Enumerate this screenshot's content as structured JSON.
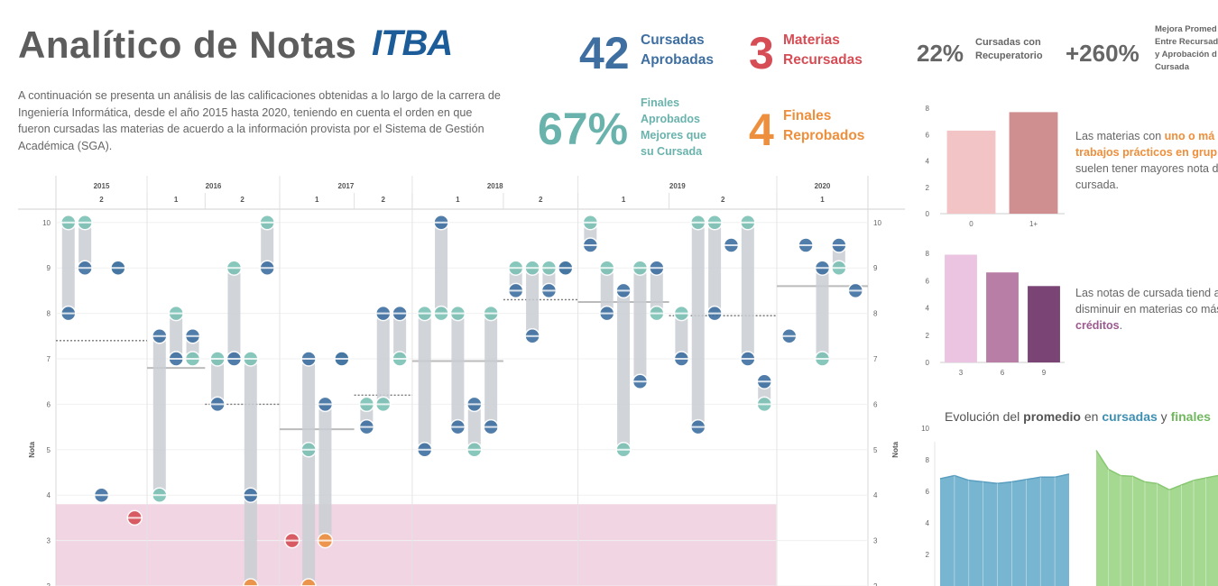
{
  "header": {
    "title": "Analítico de Notas",
    "logo_text": "ITBA",
    "intro": "A continuación se presenta un análisis de las calificaciones obtenidas a lo largo de la carrera de Ingeniería Informática, desde el año 2015 hasta 2020, teniendo en cuenta el orden en que fueron cursadas las materias de acuerdo a la información provista por el Sistema de Gestión Académica (SGA)."
  },
  "kpis": {
    "cursadas_aprobadas": {
      "value": "42",
      "label1": "Cursadas",
      "label2": "Aprobadas"
    },
    "materias_recursadas": {
      "value": "3",
      "label1": "Materias",
      "label2": "Recursadas"
    },
    "recuperatorio": {
      "value": "22%",
      "label1": "Cursadas con",
      "label2": "Recuperatorio"
    },
    "mejora": {
      "value": "+260%",
      "label1": "Mejora Promed",
      "label2": "Entre Recursad",
      "label3": "y Aprobación d",
      "label4": "Cursada"
    },
    "finales_mejores": {
      "value": "67%",
      "label1": "Finales",
      "label2": "Aprobados",
      "label3": "Mejores que",
      "label4": "su Cursada"
    },
    "finales_reprobados": {
      "value": "4",
      "label1": "Finales",
      "label2": "Reprobados"
    }
  },
  "notes": {
    "note1": {
      "t1": "Las materias con ",
      "h1": "uno o má",
      "h2": "trabajos prácticos en grup",
      "t2": " suelen tener mayores nota de cursada."
    },
    "note2": {
      "t1": "Las notas de cursada tiend a disminuir en materias co más ",
      "h1": "créditos",
      "t2": "."
    },
    "evo": {
      "t1": "Evolución del ",
      "b1": "promedio",
      "t2": " en ",
      "h1": "cursadas",
      "t3": " y ",
      "h2": "finales"
    }
  },
  "colors": {
    "cursada": "#3e6fa0",
    "final": "#7cc1b5",
    "recursada": "#d64d55",
    "reprobado": "#ed8f3c",
    "connector": "#c9ced3",
    "fail_zone": "#ecc7d9",
    "area_cursadas": "#78b5d0",
    "area_finales": "#a5d890"
  },
  "chart_data": [
    {
      "type": "scatter",
      "ylabel": "Nota",
      "ylim": [
        2,
        10
      ],
      "yticks": [
        2,
        3,
        4,
        5,
        6,
        7,
        8,
        9,
        10
      ],
      "periods": [
        {
          "year": "2015",
          "sem": "2"
        },
        {
          "year": "2016",
          "sem": "1"
        },
        {
          "year": "2016",
          "sem": "2"
        },
        {
          "year": "2017",
          "sem": "1"
        },
        {
          "year": "2017",
          "sem": "2"
        },
        {
          "year": "2018",
          "sem": "1"
        },
        {
          "year": "2018",
          "sem": "2"
        },
        {
          "year": "2019",
          "sem": "1"
        },
        {
          "year": "2019",
          "sem": "2"
        },
        {
          "year": "2020",
          "sem": "1"
        }
      ],
      "period_averages": [
        7.4,
        6.8,
        6.0,
        5.45,
        6.2,
        6.95,
        8.3,
        8.25,
        7.95,
        8.6
      ],
      "subjects": [
        {
          "period": 0,
          "cursada": 8,
          "final": 10
        },
        {
          "period": 0,
          "cursada": 9,
          "final": 10
        },
        {
          "period": 0,
          "cursada": 4,
          "final": null
        },
        {
          "period": 0,
          "cursada": 9,
          "final": 9
        },
        {
          "period": 0,
          "cursada": 3.5,
          "final": null,
          "recursada": true
        },
        {
          "period": 1,
          "cursada": 7.5,
          "final": 4
        },
        {
          "period": 1,
          "cursada": 7,
          "final": 8
        },
        {
          "period": 1,
          "cursada": 7.5,
          "final": 7
        },
        {
          "period": 2,
          "cursada": 6,
          "final": 7
        },
        {
          "period": 2,
          "cursada": 7,
          "final": 9
        },
        {
          "period": 2,
          "cursada": 4,
          "final": 7,
          "reprobado": 2
        },
        {
          "period": 2,
          "cursada": 9,
          "final": 10
        },
        {
          "period": 3,
          "cursada": 3,
          "final": null,
          "recursada": true
        },
        {
          "period": 3,
          "cursada": 7,
          "final": 5,
          "reprobado": 2
        },
        {
          "period": 3,
          "cursada": 6,
          "final": null,
          "reprobado": 3
        },
        {
          "period": 3,
          "cursada": 7,
          "final": 7
        },
        {
          "period": 4,
          "cursada": 5.5,
          "final": 6
        },
        {
          "period": 4,
          "cursada": 8,
          "final": 6
        },
        {
          "period": 4,
          "cursada": 8,
          "final": 7
        },
        {
          "period": 5,
          "cursada": 5,
          "final": 8
        },
        {
          "period": 5,
          "cursada": 10,
          "final": 8
        },
        {
          "period": 5,
          "cursada": 5.5,
          "final": 8
        },
        {
          "period": 5,
          "cursada": 6,
          "final": 5
        },
        {
          "period": 5,
          "cursada": 5.5,
          "final": 8
        },
        {
          "period": 6,
          "cursada": 8.5,
          "final": 9
        },
        {
          "period": 6,
          "cursada": 7.5,
          "final": 9
        },
        {
          "period": 6,
          "cursada": 8.5,
          "final": 9
        },
        {
          "period": 6,
          "cursada": 9,
          "final": 9
        },
        {
          "period": 7,
          "cursada": 9.5,
          "final": 10
        },
        {
          "period": 7,
          "cursada": 8,
          "final": 9
        },
        {
          "period": 7,
          "cursada": 8.5,
          "final": 5
        },
        {
          "period": 7,
          "cursada": 6.5,
          "final": 9
        },
        {
          "period": 7,
          "cursada": 9,
          "final": 8
        },
        {
          "period": 8,
          "cursada": 7,
          "final": 8
        },
        {
          "period": 8,
          "cursada": 5.5,
          "final": 10
        },
        {
          "period": 8,
          "cursada": 8,
          "final": 10
        },
        {
          "period": 8,
          "cursada": 9.5,
          "final": null
        },
        {
          "period": 8,
          "cursada": 7,
          "final": 10
        },
        {
          "period": 8,
          "cursada": 6.5,
          "final": 6
        },
        {
          "period": 9,
          "cursada": 7.5,
          "final": null
        },
        {
          "period": 9,
          "cursada": 9.5,
          "final": null
        },
        {
          "period": 9,
          "cursada": 9,
          "final": 7
        },
        {
          "period": 9,
          "cursada": 9.5,
          "final": 9
        },
        {
          "period": 9,
          "cursada": 8.5,
          "final": null
        }
      ]
    },
    {
      "type": "bar",
      "categories": [
        "0",
        "1+"
      ],
      "values": [
        6.3,
        7.7
      ],
      "ylim": [
        0,
        8
      ],
      "yticks": [
        0,
        2,
        4,
        6,
        8
      ],
      "colors": [
        "#f2c4c6",
        "#cf8e90"
      ]
    },
    {
      "type": "bar",
      "categories": [
        "3",
        "6",
        "9"
      ],
      "values": [
        7.9,
        6.6,
        5.6
      ],
      "ylim": [
        0,
        8
      ],
      "yticks": [
        0,
        2,
        4,
        6,
        8
      ],
      "colors": [
        "#ebc4e2",
        "#b97ea6",
        "#7a4575"
      ]
    },
    {
      "type": "area",
      "ylim": [
        0,
        10
      ],
      "yticks": [
        2,
        4,
        6,
        8,
        10
      ],
      "series": [
        {
          "values": [
            6.8,
            7.0,
            6.7,
            6.6,
            6.5,
            6.6,
            6.75,
            6.9,
            6.9,
            7.1
          ]
        },
        {
          "values": [
            8.6,
            7.4,
            7.0,
            6.95,
            6.6,
            6.5,
            6.1,
            6.4,
            6.7,
            6.85,
            7.0
          ]
        }
      ]
    }
  ]
}
